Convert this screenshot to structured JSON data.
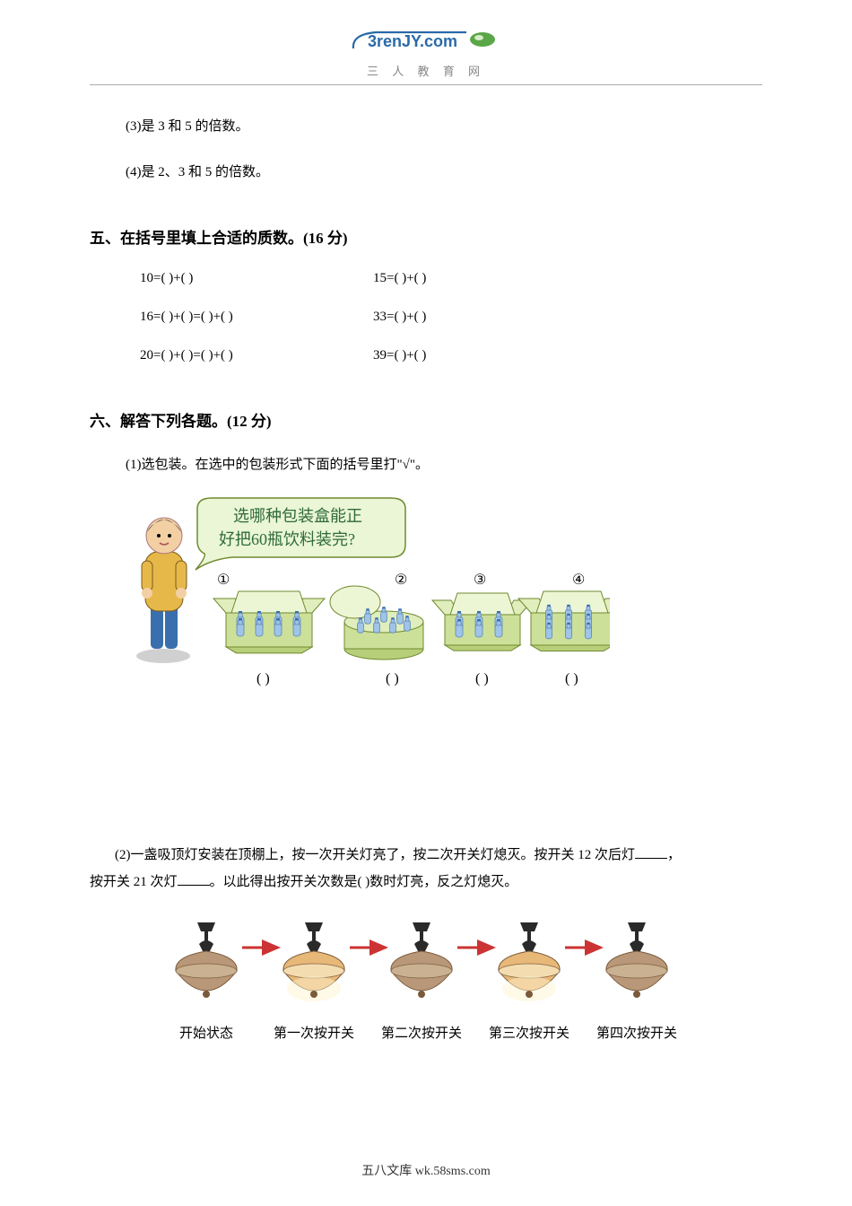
{
  "header": {
    "logo_text_main": "3renJY",
    "logo_text_suffix": ".com",
    "subtitle": "三 人 教 育 网"
  },
  "topLines": {
    "l3": "(3)是 3 和 5 的倍数。",
    "l4": "(4)是 2、3 和 5 的倍数。"
  },
  "section5": {
    "title": "五、在括号里填上合适的质数。(16 分)",
    "rows": [
      {
        "left": "10=(  )+(  )",
        "right": "15=(  )+(  )"
      },
      {
        "left": "16=(  )+(  )=(  )+(  )",
        "right": "33=(  )+(  )"
      },
      {
        "left": "20=(  )+(  )=(  )+(  )",
        "right": "39=(  )+(  )"
      }
    ]
  },
  "section6": {
    "title": "六、解答下列各题。(12 分)",
    "q1": "(1)选包装。在选中的包装形式下面的括号里打\"√\"。",
    "packaging": {
      "speech_line1": "选哪种包装盒能正",
      "speech_line2": "好把60瓶饮料装完?",
      "labels": [
        "①",
        "②",
        "③",
        "④"
      ],
      "brackets": "(    )",
      "colors": {
        "box_fill": "#cde09a",
        "box_stroke": "#6f8a2f",
        "bottle": "#9fc4e8",
        "cap": "#3a6fae",
        "speech_fill": "#eaf6d6",
        "speech_stroke": "#6f8a2f",
        "speech_text": "#2f6a3a",
        "boy_jacket": "#e6b84a",
        "boy_pants": "#3a6fae",
        "boy_hair": "#2a2a2a",
        "boy_skin": "#f3cfa4"
      }
    },
    "q2_line1_a": "(2)一盏吸顶灯安装在顶棚上，按一次开关灯亮了，按二次开关灯熄灭。按开关 12 次后灯",
    "q2_line1_b": "，",
    "q2_line2_a": "按开关 21 次灯",
    "q2_line2_b": "。以此得出按开关次数是(   )数时灯亮，反之灯熄灭。",
    "lamps": {
      "captions": [
        "开始状态",
        "第一次按开关",
        "第二次按开关",
        "第三次按开关",
        "第四次按开关"
      ],
      "arrow_color": "#c33",
      "lamp_on_fill": "#e8b878",
      "lamp_off_fill": "#b89878",
      "lamp_shade_dark": "#7a5a3a",
      "stem_color": "#2a2a2a",
      "on_states": [
        false,
        true,
        false,
        true,
        false
      ]
    }
  },
  "footer": {
    "text": "五八文库 wk.58sms.com"
  }
}
